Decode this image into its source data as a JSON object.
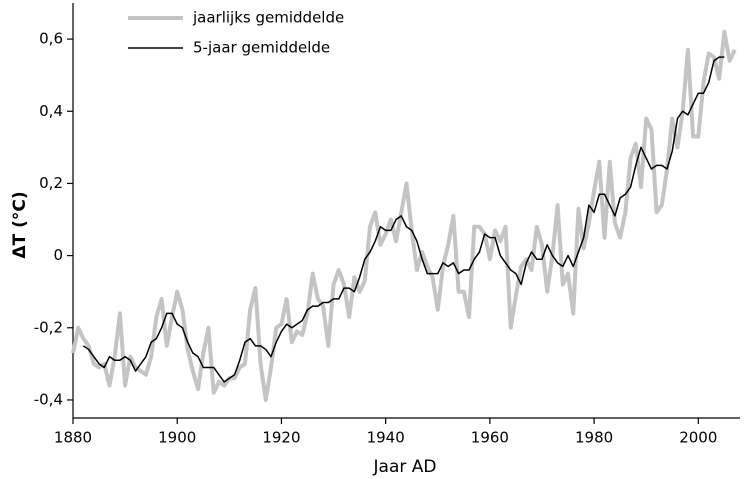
{
  "chart_data": {
    "type": "line",
    "x_label": "Jaar AD",
    "y_label": "ΔT (°C)",
    "xlim": [
      1880,
      2008
    ],
    "xticks": [
      1880,
      1900,
      1920,
      1940,
      1960,
      1980,
      2000
    ],
    "ylim": [
      -0.45,
      0.7
    ],
    "yticks": [
      {
        "value": -0.4,
        "label": "-0,4"
      },
      {
        "value": -0.2,
        "label": "-0,2"
      },
      {
        "value": 0,
        "label": "0"
      },
      {
        "value": 0.2,
        "label": "0,2"
      },
      {
        "value": 0.4,
        "label": "0,4"
      },
      {
        "value": 0.6,
        "label": "0,6"
      }
    ],
    "x": [
      1880,
      1881,
      1882,
      1883,
      1884,
      1885,
      1886,
      1887,
      1888,
      1889,
      1890,
      1891,
      1892,
      1893,
      1894,
      1895,
      1896,
      1897,
      1898,
      1899,
      1900,
      1901,
      1902,
      1903,
      1904,
      1905,
      1906,
      1907,
      1908,
      1909,
      1910,
      1911,
      1912,
      1913,
      1914,
      1915,
      1916,
      1917,
      1918,
      1919,
      1920,
      1921,
      1922,
      1923,
      1924,
      1925,
      1926,
      1927,
      1928,
      1929,
      1930,
      1931,
      1932,
      1933,
      1934,
      1935,
      1936,
      1937,
      1938,
      1939,
      1940,
      1941,
      1942,
      1943,
      1944,
      1945,
      1946,
      1947,
      1948,
      1949,
      1950,
      1951,
      1952,
      1953,
      1954,
      1955,
      1956,
      1957,
      1958,
      1959,
      1960,
      1961,
      1962,
      1963,
      1964,
      1965,
      1966,
      1967,
      1968,
      1969,
      1970,
      1971,
      1972,
      1973,
      1974,
      1975,
      1976,
      1977,
      1978,
      1979,
      1980,
      1981,
      1982,
      1983,
      1984,
      1985,
      1986,
      1987,
      1988,
      1989,
      1990,
      1991,
      1992,
      1993,
      1994,
      1995,
      1996,
      1997,
      1998,
      1999,
      2000,
      2001,
      2002,
      2003,
      2004,
      2005,
      2006,
      2007
    ],
    "series": [
      {
        "name": "jaarlijks gemiddelde",
        "color": "#c4c4c4",
        "width": 4,
        "values": [
          -0.27,
          -0.2,
          -0.23,
          -0.25,
          -0.3,
          -0.31,
          -0.3,
          -0.36,
          -0.28,
          -0.16,
          -0.36,
          -0.28,
          -0.31,
          -0.32,
          -0.33,
          -0.28,
          -0.17,
          -0.12,
          -0.25,
          -0.17,
          -0.1,
          -0.15,
          -0.26,
          -0.32,
          -0.37,
          -0.27,
          -0.2,
          -0.38,
          -0.35,
          -0.36,
          -0.34,
          -0.34,
          -0.31,
          -0.3,
          -0.15,
          -0.09,
          -0.3,
          -0.4,
          -0.31,
          -0.2,
          -0.19,
          -0.12,
          -0.24,
          -0.21,
          -0.22,
          -0.16,
          -0.05,
          -0.12,
          -0.14,
          -0.25,
          -0.08,
          -0.04,
          -0.08,
          -0.17,
          -0.06,
          -0.1,
          -0.07,
          0.08,
          0.12,
          0.03,
          0.06,
          0.1,
          0.04,
          0.12,
          0.2,
          0.07,
          -0.04,
          0.01,
          -0.03,
          -0.06,
          -0.15,
          -0.03,
          0.03,
          0.11,
          -0.1,
          -0.1,
          -0.17,
          0.08,
          0.08,
          0.06,
          -0.01,
          0.07,
          0.04,
          0.08,
          -0.2,
          -0.11,
          -0.03,
          -0.01,
          -0.04,
          0.08,
          0.03,
          -0.1,
          0.0,
          0.14,
          -0.08,
          -0.05,
          -0.16,
          0.13,
          0.02,
          0.09,
          0.18,
          0.26,
          0.05,
          0.26,
          0.09,
          0.05,
          0.12,
          0.27,
          0.31,
          0.19,
          0.38,
          0.35,
          0.12,
          0.14,
          0.24,
          0.38,
          0.3,
          0.4,
          0.57,
          0.33,
          0.33,
          0.48,
          0.56,
          0.55,
          0.49,
          0.62,
          0.54,
          0.57
        ]
      },
      {
        "name": "5-jaar gemiddelde",
        "color": "#000000",
        "width": 1.5,
        "values": [
          null,
          null,
          -0.25,
          -0.26,
          -0.28,
          -0.3,
          -0.31,
          -0.28,
          -0.29,
          -0.29,
          -0.28,
          -0.29,
          -0.32,
          -0.3,
          -0.28,
          -0.24,
          -0.23,
          -0.2,
          -0.16,
          -0.16,
          -0.19,
          -0.2,
          -0.24,
          -0.27,
          -0.28,
          -0.31,
          -0.31,
          -0.31,
          -0.33,
          -0.35,
          -0.34,
          -0.33,
          -0.29,
          -0.24,
          -0.23,
          -0.25,
          -0.25,
          -0.26,
          -0.28,
          -0.24,
          -0.21,
          -0.19,
          -0.2,
          -0.19,
          -0.18,
          -0.15,
          -0.14,
          -0.14,
          -0.13,
          -0.13,
          -0.12,
          -0.12,
          -0.09,
          -0.09,
          -0.1,
          -0.06,
          -0.01,
          0.01,
          0.04,
          0.08,
          0.07,
          0.07,
          0.1,
          0.11,
          0.08,
          0.07,
          0.04,
          -0.01,
          -0.05,
          -0.05,
          -0.05,
          -0.02,
          -0.03,
          -0.02,
          -0.05,
          -0.04,
          -0.04,
          -0.01,
          0.01,
          0.06,
          0.05,
          0.05,
          0.0,
          -0.02,
          -0.04,
          -0.05,
          -0.08,
          -0.02,
          0.01,
          -0.01,
          -0.01,
          0.03,
          0.0,
          -0.02,
          -0.03,
          0.0,
          -0.03,
          0.01,
          0.05,
          0.14,
          0.12,
          0.17,
          0.17,
          0.14,
          0.11,
          0.16,
          0.17,
          0.19,
          0.25,
          0.3,
          0.27,
          0.24,
          0.25,
          0.25,
          0.24,
          0.29,
          0.38,
          0.4,
          0.39,
          0.42,
          0.45,
          0.45,
          0.48,
          0.54,
          0.55,
          0.55,
          null,
          null
        ]
      }
    ]
  }
}
